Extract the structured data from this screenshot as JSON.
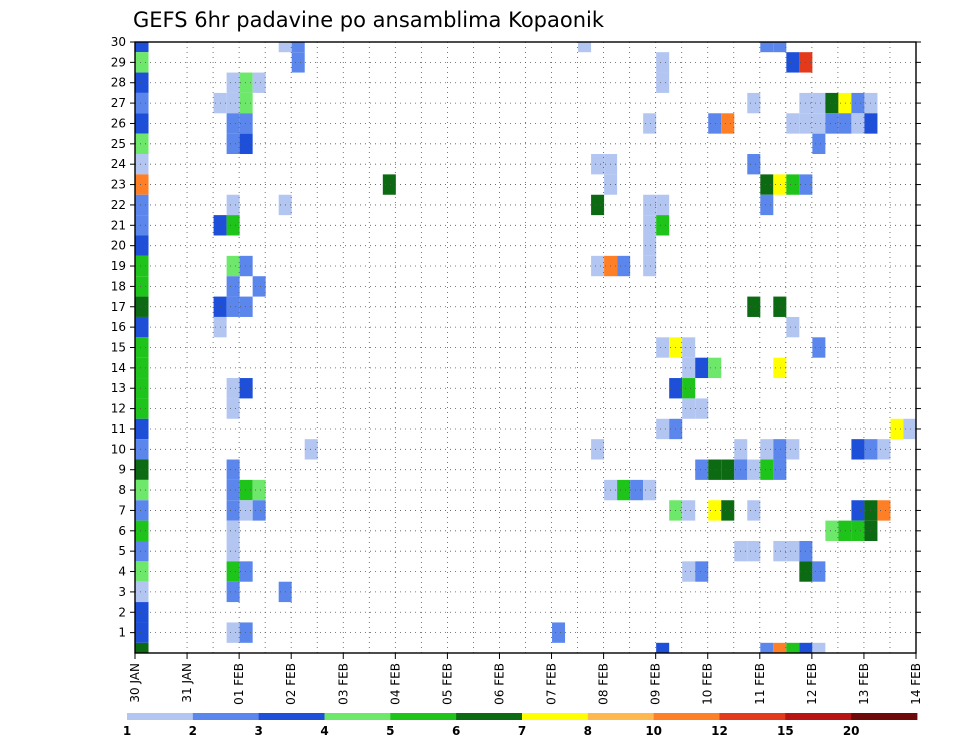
{
  "chart_data": {
    "type": "heatmap",
    "title": "GEFS 6hr padavine po ansamblima Kopaonik",
    "x_labels": [
      "30 JAN",
      "31 JAN",
      "01 FEB",
      "02 FEB",
      "03 FEB",
      "04 FEB",
      "05 FEB",
      "06 FEB",
      "07 FEB",
      "08 FEB",
      "09 FEB",
      "10 FEB",
      "11 FEB",
      "12 FEB",
      "13 FEB",
      "14 FEB"
    ],
    "x_range_days": [
      0,
      15
    ],
    "y_labels": [
      "1",
      "2",
      "3",
      "4",
      "5",
      "6",
      "7",
      "8",
      "9",
      "10",
      "11",
      "12",
      "13",
      "14",
      "15",
      "16",
      "17",
      "18",
      "19",
      "20",
      "21",
      "22",
      "23",
      "24",
      "25",
      "26",
      "27",
      "28",
      "29",
      "30"
    ],
    "y_range": [
      0,
      30
    ],
    "grid": true,
    "colorbar": {
      "labels": [
        "1",
        "2",
        "3",
        "4",
        "5",
        "6",
        "7",
        "8",
        "10",
        "12",
        "15",
        "20"
      ],
      "colors": [
        "#b3c6f2",
        "#5b86ec",
        "#1d4fd8",
        "#6ee86a",
        "#1ec41a",
        "#0b6a12",
        "#ffff00",
        "#ffb84d",
        "#ff7f27",
        "#e23a1a",
        "#b81414",
        "#6e0a0a"
      ]
    },
    "cells": [
      {
        "x": 0.0,
        "y": 30,
        "v": 3
      },
      {
        "x": 0.0,
        "y": 29,
        "v": 4
      },
      {
        "x": 0.0,
        "y": 28,
        "v": 3
      },
      {
        "x": 0.0,
        "y": 27,
        "v": 2
      },
      {
        "x": 0.0,
        "y": 26,
        "v": 3
      },
      {
        "x": 0.0,
        "y": 25,
        "v": 4
      },
      {
        "x": 0.0,
        "y": 24,
        "v": 1
      },
      {
        "x": 0.0,
        "y": 23,
        "v": 9
      },
      {
        "x": 0.0,
        "y": 22,
        "v": 2
      },
      {
        "x": 0.0,
        "y": 21,
        "v": 2
      },
      {
        "x": 0.0,
        "y": 20,
        "v": 3
      },
      {
        "x": 0.0,
        "y": 19,
        "v": 5
      },
      {
        "x": 0.0,
        "y": 18,
        "v": 5
      },
      {
        "x": 0.0,
        "y": 17,
        "v": 6
      },
      {
        "x": 0.0,
        "y": 16,
        "v": 3
      },
      {
        "x": 0.0,
        "y": 15,
        "v": 5
      },
      {
        "x": 0.0,
        "y": 14,
        "v": 5
      },
      {
        "x": 0.0,
        "y": 13,
        "v": 5
      },
      {
        "x": 0.0,
        "y": 12,
        "v": 5
      },
      {
        "x": 0.0,
        "y": 11,
        "v": 3
      },
      {
        "x": 0.0,
        "y": 10,
        "v": 2
      },
      {
        "x": 0.0,
        "y": 9,
        "v": 6
      },
      {
        "x": 0.0,
        "y": 8,
        "v": 4
      },
      {
        "x": 0.0,
        "y": 7,
        "v": 2
      },
      {
        "x": 0.0,
        "y": 6,
        "v": 5
      },
      {
        "x": 0.0,
        "y": 5,
        "v": 2
      },
      {
        "x": 0.0,
        "y": 4,
        "v": 4
      },
      {
        "x": 0.0,
        "y": 3,
        "v": 1
      },
      {
        "x": 0.0,
        "y": 2,
        "v": 3
      },
      {
        "x": 0.0,
        "y": 1,
        "v": 3
      },
      {
        "x": 0.0,
        "y": 0,
        "v": 6
      },
      {
        "x": 2.75,
        "y": 30,
        "v": 1
      },
      {
        "x": 3.0,
        "y": 30,
        "v": 2
      },
      {
        "x": 3.0,
        "y": 29,
        "v": 2
      },
      {
        "x": 1.75,
        "y": 28,
        "v": 1
      },
      {
        "x": 2.0,
        "y": 28,
        "v": 4
      },
      {
        "x": 2.25,
        "y": 28,
        "v": 1
      },
      {
        "x": 1.5,
        "y": 27,
        "v": 1
      },
      {
        "x": 1.75,
        "y": 27,
        "v": 1
      },
      {
        "x": 2.0,
        "y": 27,
        "v": 4
      },
      {
        "x": 1.75,
        "y": 26,
        "v": 2
      },
      {
        "x": 2.0,
        "y": 26,
        "v": 2
      },
      {
        "x": 1.75,
        "y": 25,
        "v": 2
      },
      {
        "x": 2.0,
        "y": 25,
        "v": 3
      },
      {
        "x": 1.75,
        "y": 22,
        "v": 1
      },
      {
        "x": 2.75,
        "y": 22,
        "v": 1
      },
      {
        "x": 1.5,
        "y": 21,
        "v": 3
      },
      {
        "x": 1.75,
        "y": 21,
        "v": 5
      },
      {
        "x": 1.75,
        "y": 19,
        "v": 4
      },
      {
        "x": 2.0,
        "y": 19,
        "v": 2
      },
      {
        "x": 1.75,
        "y": 18,
        "v": 2
      },
      {
        "x": 2.25,
        "y": 18,
        "v": 2
      },
      {
        "x": 1.5,
        "y": 17,
        "v": 3
      },
      {
        "x": 1.75,
        "y": 17,
        "v": 2
      },
      {
        "x": 2.0,
        "y": 17,
        "v": 2
      },
      {
        "x": 1.5,
        "y": 16,
        "v": 1
      },
      {
        "x": 1.75,
        "y": 13,
        "v": 1
      },
      {
        "x": 2.0,
        "y": 13,
        "v": 3
      },
      {
        "x": 1.75,
        "y": 12,
        "v": 1
      },
      {
        "x": 3.25,
        "y": 10,
        "v": 1
      },
      {
        "x": 1.75,
        "y": 9,
        "v": 2
      },
      {
        "x": 1.75,
        "y": 8,
        "v": 2
      },
      {
        "x": 2.0,
        "y": 8,
        "v": 5
      },
      {
        "x": 2.25,
        "y": 8,
        "v": 4
      },
      {
        "x": 1.75,
        "y": 7,
        "v": 2
      },
      {
        "x": 2.0,
        "y": 7,
        "v": 1
      },
      {
        "x": 2.25,
        "y": 7,
        "v": 2
      },
      {
        "x": 1.75,
        "y": 6,
        "v": 1
      },
      {
        "x": 1.75,
        "y": 5,
        "v": 1
      },
      {
        "x": 1.75,
        "y": 4,
        "v": 5
      },
      {
        "x": 2.0,
        "y": 4,
        "v": 2
      },
      {
        "x": 1.75,
        "y": 3,
        "v": 2
      },
      {
        "x": 2.75,
        "y": 3,
        "v": 2
      },
      {
        "x": 1.75,
        "y": 1,
        "v": 1
      },
      {
        "x": 2.0,
        "y": 1,
        "v": 2
      },
      {
        "x": 4.75,
        "y": 23,
        "v": 6
      },
      {
        "x": 8.5,
        "y": 30,
        "v": 1
      },
      {
        "x": 8.0,
        "y": 1,
        "v": 2
      },
      {
        "x": 8.75,
        "y": 24,
        "v": 1
      },
      {
        "x": 9.0,
        "y": 24,
        "v": 1
      },
      {
        "x": 9.0,
        "y": 23,
        "v": 1
      },
      {
        "x": 8.75,
        "y": 22,
        "v": 6
      },
      {
        "x": 8.75,
        "y": 19,
        "v": 1
      },
      {
        "x": 9.0,
        "y": 19,
        "v": 9
      },
      {
        "x": 9.25,
        "y": 19,
        "v": 2
      },
      {
        "x": 8.75,
        "y": 10,
        "v": 1
      },
      {
        "x": 9.0,
        "y": 8,
        "v": 1
      },
      {
        "x": 9.25,
        "y": 8,
        "v": 5
      },
      {
        "x": 9.5,
        "y": 8,
        "v": 2
      },
      {
        "x": 9.75,
        "y": 8,
        "v": 1
      },
      {
        "x": 10.0,
        "y": 29,
        "v": 1
      },
      {
        "x": 10.0,
        "y": 28,
        "v": 1
      },
      {
        "x": 9.75,
        "y": 26,
        "v": 1
      },
      {
        "x": 9.75,
        "y": 22,
        "v": 1
      },
      {
        "x": 10.0,
        "y": 22,
        "v": 1
      },
      {
        "x": 9.75,
        "y": 21,
        "v": 1
      },
      {
        "x": 10.0,
        "y": 21,
        "v": 5
      },
      {
        "x": 9.75,
        "y": 20,
        "v": 1
      },
      {
        "x": 9.75,
        "y": 19,
        "v": 1
      },
      {
        "x": 10.0,
        "y": 15,
        "v": 1
      },
      {
        "x": 10.25,
        "y": 15,
        "v": 7
      },
      {
        "x": 10.5,
        "y": 15,
        "v": 1
      },
      {
        "x": 10.5,
        "y": 14,
        "v": 1
      },
      {
        "x": 10.75,
        "y": 14,
        "v": 3
      },
      {
        "x": 11.0,
        "y": 14,
        "v": 4
      },
      {
        "x": 10.25,
        "y": 13,
        "v": 3
      },
      {
        "x": 10.5,
        "y": 13,
        "v": 5
      },
      {
        "x": 10.5,
        "y": 12,
        "v": 1
      },
      {
        "x": 10.75,
        "y": 12,
        "v": 1
      },
      {
        "x": 10.0,
        "y": 11,
        "v": 1
      },
      {
        "x": 10.25,
        "y": 11,
        "v": 2
      },
      {
        "x": 10.75,
        "y": 9,
        "v": 2
      },
      {
        "x": 11.0,
        "y": 9,
        "v": 6
      },
      {
        "x": 11.25,
        "y": 9,
        "v": 6
      },
      {
        "x": 10.25,
        "y": 7,
        "v": 4
      },
      {
        "x": 10.5,
        "y": 7,
        "v": 1
      },
      {
        "x": 10.5,
        "y": 4,
        "v": 1
      },
      {
        "x": 10.75,
        "y": 4,
        "v": 2
      },
      {
        "x": 11.0,
        "y": 26,
        "v": 2
      },
      {
        "x": 11.25,
        "y": 26,
        "v": 9
      },
      {
        "x": 11.0,
        "y": 7,
        "v": 7
      },
      {
        "x": 11.25,
        "y": 7,
        "v": 6
      },
      {
        "x": 10.0,
        "y": 0,
        "v": 3
      },
      {
        "x": 12.0,
        "y": 30,
        "v": 2
      },
      {
        "x": 12.25,
        "y": 30,
        "v": 2
      },
      {
        "x": 12.5,
        "y": 29,
        "v": 3
      },
      {
        "x": 12.75,
        "y": 29,
        "v": 10
      },
      {
        "x": 11.75,
        "y": 27,
        "v": 1
      },
      {
        "x": 12.5,
        "y": 26,
        "v": 1
      },
      {
        "x": 11.75,
        "y": 24,
        "v": 2
      },
      {
        "x": 12.0,
        "y": 23,
        "v": 6
      },
      {
        "x": 12.25,
        "y": 23,
        "v": 7
      },
      {
        "x": 12.5,
        "y": 23,
        "v": 5
      },
      {
        "x": 12.75,
        "y": 23,
        "v": 2
      },
      {
        "x": 12.0,
        "y": 22,
        "v": 2
      },
      {
        "x": 11.75,
        "y": 17,
        "v": 6
      },
      {
        "x": 12.25,
        "y": 17,
        "v": 6
      },
      {
        "x": 12.5,
        "y": 16,
        "v": 1
      },
      {
        "x": 12.25,
        "y": 14,
        "v": 7
      },
      {
        "x": 11.5,
        "y": 10,
        "v": 1
      },
      {
        "x": 12.0,
        "y": 10,
        "v": 1
      },
      {
        "x": 12.25,
        "y": 10,
        "v": 2
      },
      {
        "x": 12.5,
        "y": 10,
        "v": 1
      },
      {
        "x": 11.5,
        "y": 9,
        "v": 2
      },
      {
        "x": 11.75,
        "y": 9,
        "v": 1
      },
      {
        "x": 12.0,
        "y": 9,
        "v": 5
      },
      {
        "x": 12.25,
        "y": 9,
        "v": 2
      },
      {
        "x": 11.75,
        "y": 7,
        "v": 1
      },
      {
        "x": 11.5,
        "y": 5,
        "v": 1
      },
      {
        "x": 11.75,
        "y": 5,
        "v": 1
      },
      {
        "x": 12.25,
        "y": 5,
        "v": 1
      },
      {
        "x": 12.5,
        "y": 5,
        "v": 1
      },
      {
        "x": 12.75,
        "y": 5,
        "v": 2
      },
      {
        "x": 12.75,
        "y": 4,
        "v": 6
      },
      {
        "x": 13.0,
        "y": 4,
        "v": 2
      },
      {
        "x": 12.0,
        "y": 0,
        "v": 2
      },
      {
        "x": 12.25,
        "y": 0,
        "v": 9
      },
      {
        "x": 12.5,
        "y": 0,
        "v": 5
      },
      {
        "x": 12.75,
        "y": 0,
        "v": 3
      },
      {
        "x": 13.0,
        "y": 0,
        "v": 1
      },
      {
        "x": 12.75,
        "y": 27,
        "v": 1
      },
      {
        "x": 13.0,
        "y": 27,
        "v": 1
      },
      {
        "x": 13.25,
        "y": 27,
        "v": 6
      },
      {
        "x": 13.5,
        "y": 27,
        "v": 7
      },
      {
        "x": 13.75,
        "y": 27,
        "v": 2
      },
      {
        "x": 14.0,
        "y": 27,
        "v": 1
      },
      {
        "x": 12.75,
        "y": 26,
        "v": 1
      },
      {
        "x": 13.0,
        "y": 26,
        "v": 1
      },
      {
        "x": 13.25,
        "y": 26,
        "v": 2
      },
      {
        "x": 13.5,
        "y": 26,
        "v": 2
      },
      {
        "x": 13.75,
        "y": 26,
        "v": 1
      },
      {
        "x": 14.0,
        "y": 26,
        "v": 3
      },
      {
        "x": 13.0,
        "y": 25,
        "v": 2
      },
      {
        "x": 13.0,
        "y": 15,
        "v": 2
      },
      {
        "x": 14.5,
        "y": 11,
        "v": 7
      },
      {
        "x": 14.75,
        "y": 11,
        "v": 1
      },
      {
        "x": 13.75,
        "y": 10,
        "v": 3
      },
      {
        "x": 14.0,
        "y": 10,
        "v": 2
      },
      {
        "x": 14.25,
        "y": 10,
        "v": 1
      },
      {
        "x": 13.75,
        "y": 7,
        "v": 3
      },
      {
        "x": 14.0,
        "y": 7,
        "v": 6
      },
      {
        "x": 14.25,
        "y": 7,
        "v": 9
      },
      {
        "x": 13.25,
        "y": 6,
        "v": 4
      },
      {
        "x": 13.5,
        "y": 6,
        "v": 5
      },
      {
        "x": 13.75,
        "y": 6,
        "v": 5
      },
      {
        "x": 14.0,
        "y": 6,
        "v": 6
      }
    ]
  }
}
